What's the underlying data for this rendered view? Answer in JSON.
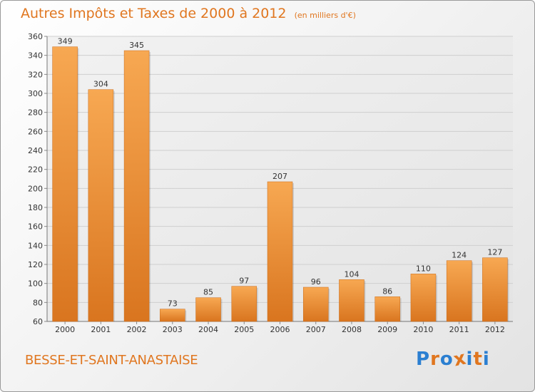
{
  "header": {
    "title": "Autres Impôts et Taxes de 2000 à 2012",
    "subtitle": "(en milliers d'€)"
  },
  "footer": {
    "commune": "BESSE-ET-SAINT-ANASTAISE",
    "brand": "Proxiti",
    "brand_colors": [
      "#2b7fd1",
      "#e0761f",
      "#2b7fd1",
      "#e0761f",
      "#2b7fd1",
      "#e0761f",
      "#2b7fd1"
    ]
  },
  "chart_data": {
    "type": "bar",
    "title": "Autres Impôts et Taxes de 2000 à 2012",
    "subtitle": "(en milliers d'€)",
    "categories": [
      "2000",
      "2001",
      "2002",
      "2003",
      "2004",
      "2005",
      "2006",
      "2007",
      "2008",
      "2009",
      "2010",
      "2011",
      "2012"
    ],
    "values": [
      349,
      304,
      345,
      73,
      85,
      97,
      207,
      96,
      104,
      86,
      110,
      124,
      127
    ],
    "data_labels": [
      "349",
      "304",
      "345",
      "73",
      "85",
      "97",
      "207",
      "96",
      "104",
      "86",
      "110",
      "124",
      "127"
    ],
    "ylim": [
      60,
      360
    ],
    "yticks": [
      60,
      80,
      100,
      120,
      140,
      160,
      180,
      200,
      220,
      240,
      260,
      280,
      300,
      320,
      340,
      360
    ],
    "grid": true,
    "bar_color": "#f29a3e",
    "bar_color_dark": "#d9751f"
  }
}
